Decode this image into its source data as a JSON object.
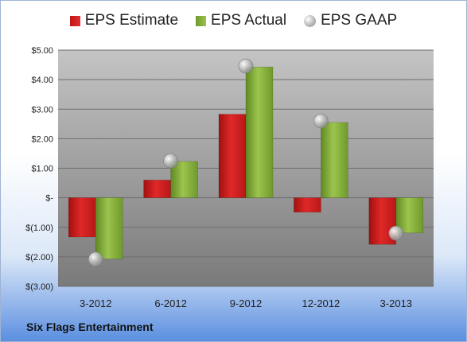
{
  "company": "Six Flags Entertainment",
  "colors": {
    "estimate": "#d42020",
    "actual": "#8ab43e",
    "gaap": "#b5b5b5",
    "plot_top": "#bfbfbf",
    "plot_bottom": "#7f7f7f"
  },
  "chart_data": {
    "type": "bar",
    "title": "",
    "xlabel": "",
    "ylabel": "",
    "categories": [
      "3-2012",
      "6-2012",
      "9-2012",
      "12-2012",
      "3-2013"
    ],
    "series": [
      {
        "name": "EPS Estimate",
        "kind": "bar",
        "values": [
          -1.33,
          0.6,
          2.83,
          -0.49,
          -1.58
        ]
      },
      {
        "name": "EPS Actual",
        "kind": "bar",
        "values": [
          -2.07,
          1.23,
          4.43,
          2.55,
          -1.19
        ]
      },
      {
        "name": "EPS GAAP",
        "kind": "scatter",
        "values": [
          -2.08,
          1.25,
          4.46,
          2.6,
          -1.2
        ]
      }
    ],
    "ylim": [
      -3,
      5
    ],
    "yticks": [
      5,
      4,
      3,
      2,
      1,
      0,
      -1,
      -2,
      -3
    ],
    "ytick_labels": [
      "$5.00",
      "$4.00",
      "$3.00",
      "$2.00",
      "$1.00",
      "$-",
      "$(1.00)",
      "$(2.00)",
      "$(3.00)"
    ],
    "grid": true,
    "legend_position": "top"
  }
}
